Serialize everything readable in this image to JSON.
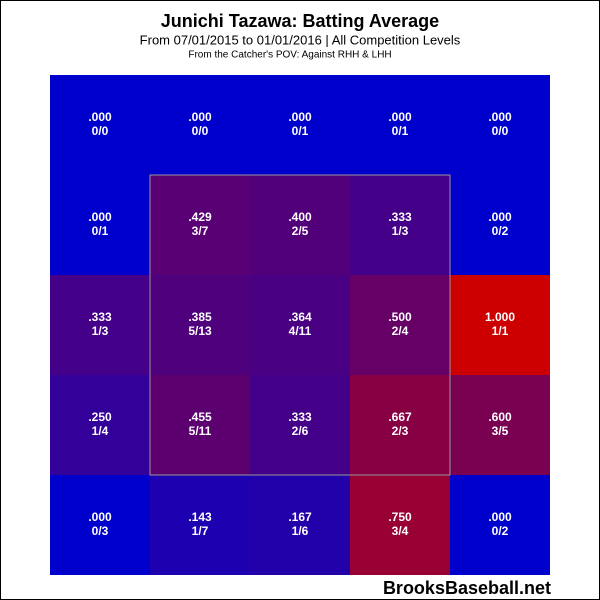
{
  "chart_data": {
    "type": "heatmap",
    "title": "Junichi Tazawa: Batting Average",
    "subtitle": "From 07/01/2015 to 01/01/2016 | All Competition Levels",
    "note": "From the Catcher's POV:  Against RHH & LHH",
    "watermark": "BrooksBaseball.net",
    "colormap": [
      "#0000cc",
      "#cc0000"
    ],
    "values": [
      [
        0,
        0,
        0,
        0,
        0
      ],
      [
        0,
        0.429,
        0.4,
        0.333,
        0
      ],
      [
        0.333,
        0.385,
        0.364,
        0.5,
        1
      ],
      [
        0.25,
        0.455,
        0.333,
        0.667,
        0.6
      ],
      [
        0,
        0.143,
        0.167,
        0.75,
        0
      ]
    ],
    "value_labels": [
      [
        ".000",
        ".000",
        ".000",
        ".000",
        ".000"
      ],
      [
        ".000",
        ".429",
        ".400",
        ".333",
        ".000"
      ],
      [
        ".333",
        ".385",
        ".364",
        ".500",
        "1.000"
      ],
      [
        ".250",
        ".455",
        ".333",
        ".667",
        ".600"
      ],
      [
        ".000",
        ".143",
        ".167",
        ".750",
        ".000"
      ]
    ],
    "counts": [
      [
        "0/0",
        "0/0",
        "0/1",
        "0/1",
        "0/0"
      ],
      [
        "0/1",
        "3/7",
        "2/5",
        "1/3",
        "0/2"
      ],
      [
        "1/3",
        "5/13",
        "4/11",
        "2/4",
        "1/1"
      ],
      [
        "1/4",
        "5/11",
        "2/6",
        "2/3",
        "3/5"
      ],
      [
        "0/3",
        "1/7",
        "1/6",
        "3/4",
        "0/2"
      ]
    ]
  }
}
